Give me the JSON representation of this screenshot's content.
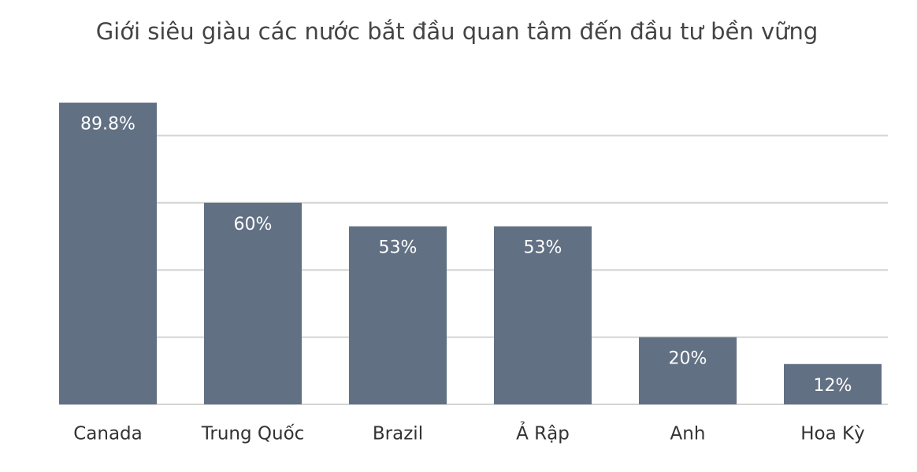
{
  "chart_data": {
    "type": "bar",
    "title": "Giới siêu giàu các nước bắt đầu quan tâm đến đầu tư bền vững",
    "categories": [
      "Canada",
      "Trung Quốc",
      "Brazil",
      "Ả Rập",
      "Anh",
      "Hoa Kỳ"
    ],
    "values": [
      89.8,
      60,
      53,
      53,
      20,
      12
    ],
    "value_labels": [
      "89.8%",
      "60%",
      "53%",
      "53%",
      "20%",
      "12%"
    ],
    "color": "#627084",
    "ylim": [
      0,
      100
    ],
    "yticks": [
      0,
      20,
      40,
      60,
      80
    ],
    "grid": true
  }
}
